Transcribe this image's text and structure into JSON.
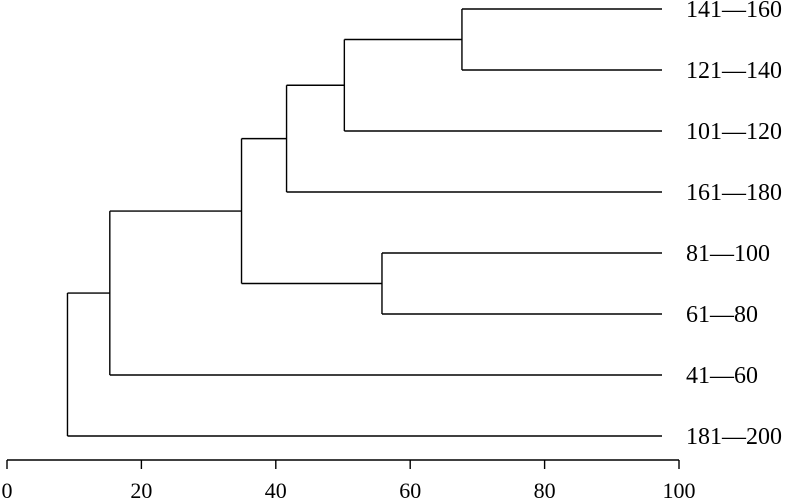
{
  "dendrogram": {
    "leaves": [
      {
        "id": "141-160",
        "label": "141—160"
      },
      {
        "id": "121-140",
        "label": "121—140"
      },
      {
        "id": "101-120",
        "label": "101—120"
      },
      {
        "id": "161-180",
        "label": "161—180"
      },
      {
        "id": "81-100",
        "label": "81—100"
      },
      {
        "id": "61-80",
        "label": "61—80"
      },
      {
        "id": "41-60",
        "label": "41—60"
      },
      {
        "id": "181-200",
        "label": "181—200"
      }
    ],
    "merges": [
      {
        "id": "m1",
        "children": [
          "141-160",
          "121-140"
        ],
        "height": 67.7
      },
      {
        "id": "m2",
        "children": [
          "m1",
          "101-120"
        ],
        "height": 50.2
      },
      {
        "id": "m3",
        "children": [
          "m2",
          "161-180"
        ],
        "height": 41.6
      },
      {
        "id": "m4",
        "children": [
          "81-100",
          "61-80"
        ],
        "height": 55.8
      },
      {
        "id": "m5",
        "children": [
          "m3",
          "m4"
        ],
        "height": 34.9
      },
      {
        "id": "m6",
        "children": [
          "m5",
          "41-60"
        ],
        "height": 15.3
      },
      {
        "id": "m7",
        "children": [
          "m6",
          "181-200"
        ],
        "height": 9.0
      }
    ]
  },
  "axis": {
    "min": 0,
    "max": 100,
    "ticks": [
      0,
      20,
      40,
      60,
      80,
      100
    ],
    "tick_labels": [
      "0",
      "20",
      "40",
      "60",
      "80",
      "100"
    ]
  }
}
